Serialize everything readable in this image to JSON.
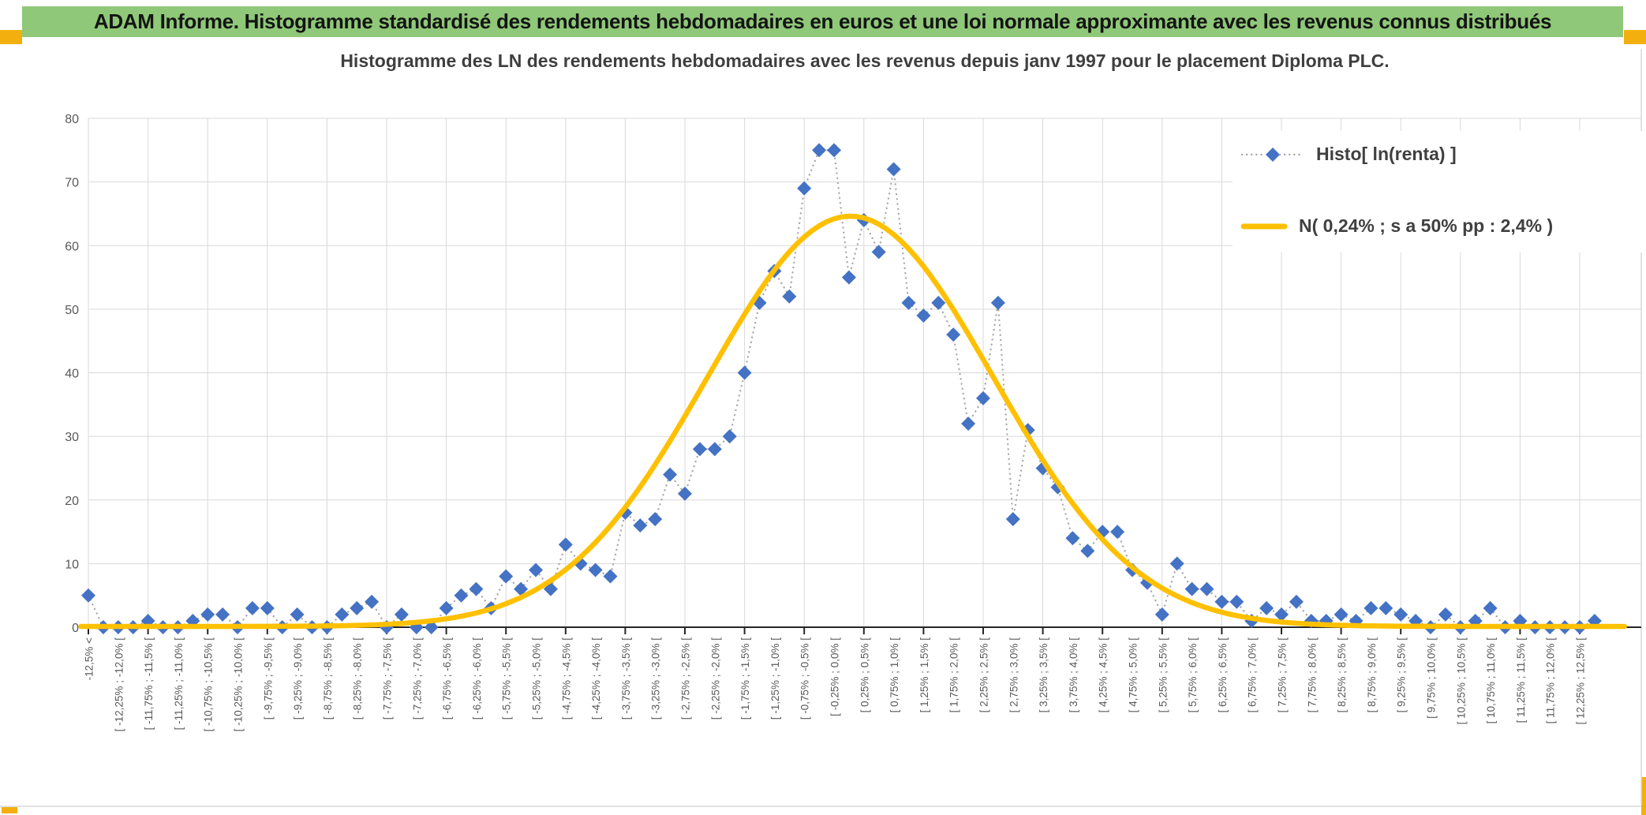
{
  "banner": {
    "text": "ADAM Informe. Histogramme standardisé des rendements hebdomadaires en euros et une loi normale approximante avec les revenus connus distribués"
  },
  "chart": {
    "title": "Histogramme des LN des rendements hebdomadaires avec les revenus depuis janv 1997 pour le placement Diploma PLC."
  },
  "chart_data": {
    "type": "line",
    "title": "Histogramme des LN des rendements hebdomadaires avec les revenus depuis janv 1997 pour le placement Diploma PLC.",
    "xlabel": "",
    "ylabel": "",
    "ylim": [
      0,
      80
    ],
    "yticks": [
      0,
      10,
      20,
      30,
      40,
      50,
      60,
      70,
      80
    ],
    "grid": true,
    "legend_position": "top-right",
    "label_every_n_points": 2,
    "categories": [
      "-12,5% <",
      "[ -12,25% ; -12,0% [",
      "[ -11,75% ; -11,5% [",
      "[ -11,25% ; -11,0% [",
      "[ -10,75% ; -10,5% [",
      "[ -10,25% ; -10,0% [",
      "[ -9,75% ; -9,5% [",
      "[ -9,25% ; -9,0% [",
      "[ -8,75% ; -8,5% [",
      "[ -8,25% ; -8,0% [",
      "[ -7,75% ; -7,5% [",
      "[ -7,25% ; -7,0% [",
      "[ -6,75% ; -6,5% [",
      "[ -6,25% ; -6,0% [",
      "[ -5,75% ; -5,5% [",
      "[ -5,25% ; -5,0% [",
      "[ -4,75% ; -4,5% [",
      "[ -4,25% ; -4,0% [",
      "[ -3,75% ; -3,5% [",
      "[ -3,25% ; -3,0% [",
      "[ -2,75% ; -2,5% [",
      "[ -2,25% ; -2,0% [",
      "[ -1,75% ; -1,5% [",
      "[ -1,25% ; -1,0% [",
      "[ -0,75% ; -0,5% [",
      "[ -0,25% ; 0,0% [",
      "[ 0,25% ; 0,5% [",
      "[ 0,75% ; 1,0% [",
      "[ 1,25% ; 1,5% [",
      "[ 1,75% ; 2,0% [",
      "[ 2,25% ; 2,5% [",
      "[ 2,75% ; 3,0% [",
      "[ 3,25% ; 3,5% [",
      "[ 3,75% ; 4,0% [",
      "[ 4,25% ; 4,5% [",
      "[ 4,75% ; 5,0% [",
      "[ 5,25% ; 5,5% [",
      "[ 5,75% ; 6,0% [",
      "[ 6,25% ; 6,5% [",
      "[ 6,75% ; 7,0% [",
      "[ 7,25% ; 7,5% [",
      "[ 7,75% ; 8,0% [",
      "[ 8,25% ; 8,5% [",
      "[ 8,75% ; 9,0% [",
      "[ 9,25% ; 9,5% [",
      "[ 9,75% ; 10,0% [",
      "[ 10,25% ; 10,5% [",
      "[ 10,75% ; 11,0% [",
      "[ 11,25% ; 11,5% [",
      "[ 11,75% ; 12,0% [",
      "[ 12,25% ; 12,5% ["
    ],
    "series": [
      {
        "name": "Histo[ ln(renta) ]",
        "marker": "diamond",
        "line_style": "dotted",
        "color": "#4472C4",
        "connector_color": "#A6A6A6",
        "values": [
          5,
          0,
          0,
          0,
          1,
          0,
          0,
          1,
          2,
          2,
          0,
          3,
          3,
          0,
          2,
          0,
          0,
          2,
          3,
          4,
          0,
          2,
          0,
          0,
          3,
          5,
          6,
          3,
          8,
          6,
          9,
          6,
          13,
          10,
          9,
          8,
          18,
          16,
          17,
          24,
          21,
          28,
          28,
          30,
          40,
          51,
          56,
          52,
          69,
          75,
          75,
          55,
          64,
          59,
          72,
          51,
          49,
          51,
          46,
          32,
          36,
          51,
          17,
          31,
          25,
          22,
          14,
          12,
          15,
          15,
          9,
          7,
          2,
          10,
          6,
          6,
          4,
          4,
          1,
          3,
          2,
          4,
          1,
          1,
          2,
          1,
          3,
          3,
          2,
          1,
          0,
          2,
          0,
          1,
          3,
          0,
          1,
          0,
          0,
          0,
          0,
          1
        ]
      },
      {
        "name": "N( 0,24% ; s a 50% pp : 2,4% )",
        "type": "normal_curve",
        "color": "#FFC000",
        "mean": "0,24%",
        "sd": "2,4%",
        "peak_height": 64.5,
        "mean_index": 51.1,
        "sigma_index": 9.6
      }
    ]
  },
  "colors": {
    "banner_green": "#8FC878",
    "accent_gold": "#F3AF0E",
    "curve_gold": "#FFC000",
    "diamond_blue": "#4472C4",
    "connector_gray": "#A6A6A6",
    "grid_gray": "#D9D9D9",
    "axis_black": "#262626",
    "text_dark": "#404040",
    "text_axis": "#595959"
  }
}
